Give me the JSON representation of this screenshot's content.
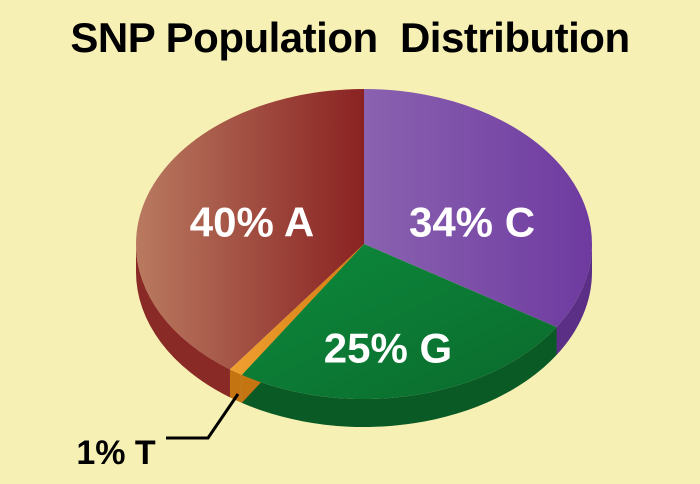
{
  "chart_data": {
    "type": "pie",
    "title": "SNP Population  Distribution",
    "slices": [
      {
        "name": "C",
        "value": 34,
        "label": "34% C",
        "color": "#7a46a6",
        "side_color": "#5b2f86"
      },
      {
        "name": "G",
        "value": 25,
        "label": "25% G",
        "color": "#0b7a35",
        "side_color": "#0a5a26"
      },
      {
        "name": "T",
        "value": 1,
        "label": "1% T",
        "color": "#e08a20",
        "side_color": "#c57412"
      },
      {
        "name": "A",
        "value": 40,
        "label": "40% A",
        "color": "#9e3b34",
        "side_color": "#8a2a26"
      }
    ],
    "start": "12 o'clock, clockwise",
    "style": "3D tilted pie"
  }
}
